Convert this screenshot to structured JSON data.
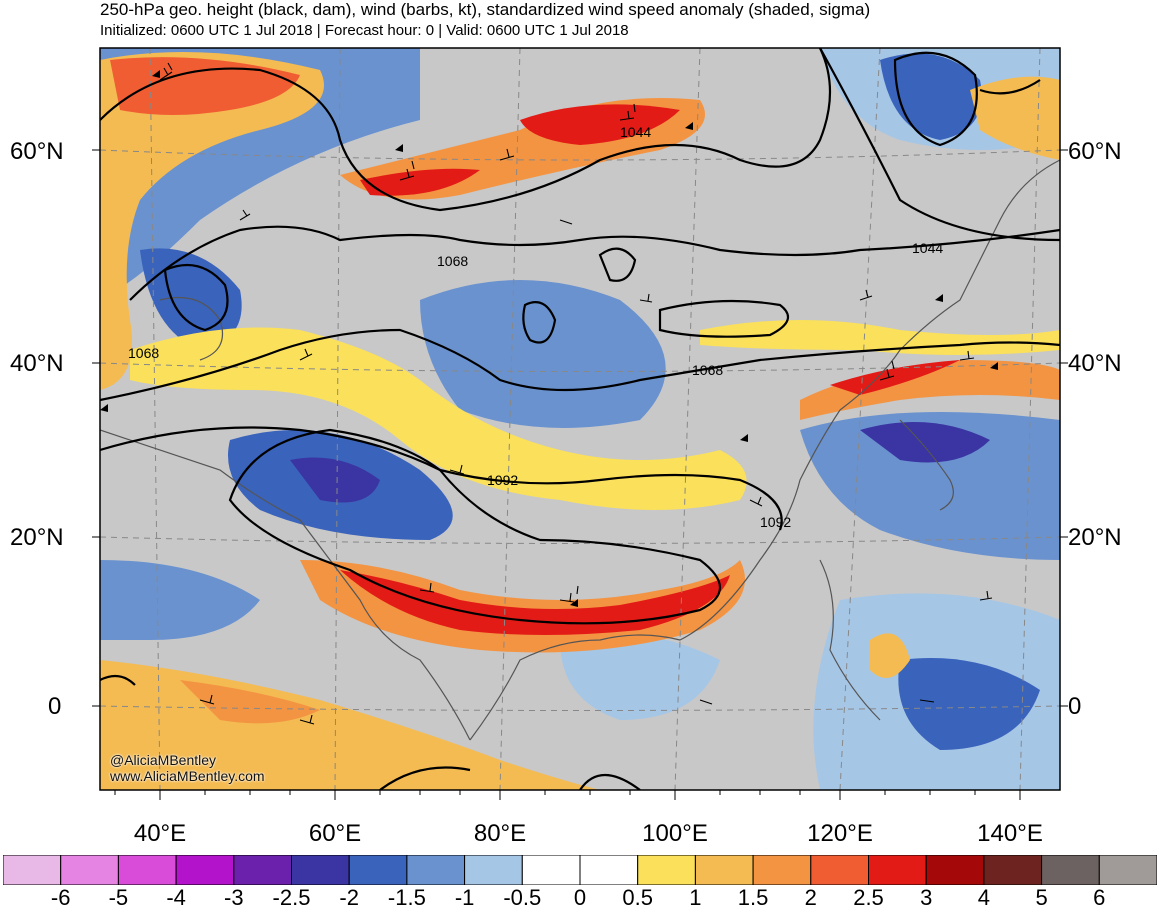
{
  "title": "250-hPa geo. height (black, dam), wind (barbs, kt), standardized wind speed anomaly (shaded, sigma)",
  "subtitle": "Initialized: 0600 UTC 1 Jul 2018 | Forecast hour: 0 | Valid: 0600 UTC 1 Jul 2018",
  "lat_labels": [
    "60°N",
    "40°N",
    "20°N",
    "0"
  ],
  "lon_labels": [
    "40°E",
    "60°E",
    "80°E",
    "100°E",
    "120°E",
    "140°E"
  ],
  "contour_labels": [
    "1044",
    "1044",
    "1068",
    "1068",
    "1068",
    "1092",
    "1092"
  ],
  "credit": {
    "handle": "@AliciaMBentley",
    "url": "www.AliciaMBentley.com"
  },
  "colorbar": {
    "colors": [
      "#e8b8e6",
      "#e584e2",
      "#d94cd9",
      "#b413cc",
      "#6c21ad",
      "#3a35a2",
      "#3a63bb",
      "#6a92cf",
      "#a6c6e6",
      "#ffffff",
      "#ffffff",
      "#fae05b",
      "#f4bb52",
      "#f39443",
      "#f15d33",
      "#e31b17",
      "#a50808",
      "#6d2420",
      "#6c6261",
      "#a09a98"
    ],
    "labels": [
      "-6",
      "-5",
      "-4",
      "-3",
      "-2.5",
      "-2",
      "-1.5",
      "-1",
      "-0.5",
      "0",
      "0.5",
      "1",
      "1.5",
      "2",
      "2.5",
      "3",
      "4",
      "5",
      "6"
    ]
  }
}
